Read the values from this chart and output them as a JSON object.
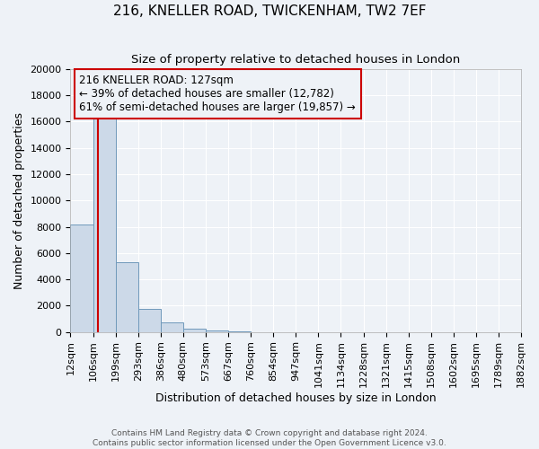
{
  "title": "216, KNELLER ROAD, TWICKENHAM, TW2 7EF",
  "subtitle": "Size of property relative to detached houses in London",
  "xlabel": "Distribution of detached houses by size in London",
  "ylabel": "Number of detached properties",
  "bin_edges": [
    12,
    106,
    199,
    293,
    386,
    480,
    573,
    667,
    760,
    854,
    947,
    1041,
    1134,
    1228,
    1321,
    1415,
    1508,
    1602,
    1695,
    1789,
    1882
  ],
  "bin_labels": [
    "12sqm",
    "106sqm",
    "199sqm",
    "293sqm",
    "386sqm",
    "480sqm",
    "573sqm",
    "667sqm",
    "760sqm",
    "854sqm",
    "947sqm",
    "1041sqm",
    "1134sqm",
    "1228sqm",
    "1321sqm",
    "1415sqm",
    "1508sqm",
    "1602sqm",
    "1695sqm",
    "1789sqm",
    "1882sqm"
  ],
  "bar_heights": [
    8200,
    16500,
    5300,
    1750,
    700,
    250,
    100,
    50,
    0,
    0,
    0,
    0,
    0,
    0,
    0,
    0,
    0,
    0,
    0,
    0
  ],
  "bar_color": "#ccd9e8",
  "bar_edge_color": "#7099bb",
  "property_size": 127,
  "property_label": "216 KNELLER ROAD: 127sqm",
  "pct_smaller": 39,
  "pct_smaller_count": 12782,
  "pct_larger": 61,
  "pct_larger_count": 19857,
  "red_line_color": "#cc0000",
  "annotation_box_edge_color": "#cc0000",
  "ylim": [
    0,
    20000
  ],
  "yticks": [
    0,
    2000,
    4000,
    6000,
    8000,
    10000,
    12000,
    14000,
    16000,
    18000,
    20000
  ],
  "footer_line1": "Contains HM Land Registry data © Crown copyright and database right 2024.",
  "footer_line2": "Contains public sector information licensed under the Open Government Licence v3.0.",
  "background_color": "#eef2f7",
  "grid_color": "#ffffff",
  "title_fontsize": 11,
  "subtitle_fontsize": 9.5,
  "axis_label_fontsize": 9,
  "tick_fontsize": 8,
  "annotation_fontsize": 8.5
}
